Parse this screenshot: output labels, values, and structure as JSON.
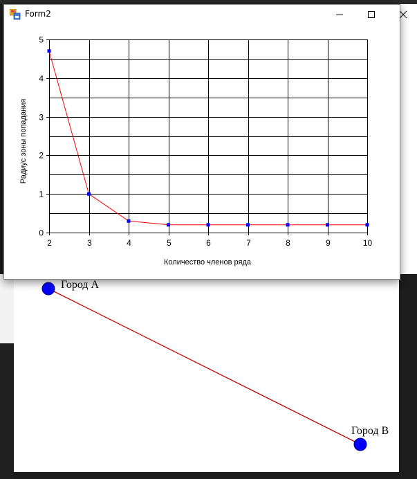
{
  "window": {
    "title": "Form2",
    "icon": "form-app-icon",
    "controls": [
      "minimize-icon",
      "maximize-icon",
      "close-icon"
    ]
  },
  "background_form": {
    "cities": [
      {
        "name": "Город A",
        "color": "#0000ff"
      },
      {
        "name": "Город B",
        "color": "#0000ff"
      }
    ],
    "line_color": "#c00000"
  },
  "chart_data": {
    "type": "line",
    "xlabel": "Количество членов ряда",
    "ylabel": "Радиус зоны попадания",
    "x": [
      2,
      3,
      4,
      5,
      6,
      7,
      8,
      9,
      10
    ],
    "series": [
      {
        "values": [
          4.7,
          1.0,
          0.3,
          0.2,
          0.2,
          0.2,
          0.2,
          0.2,
          0.2
        ],
        "line_color": "#ff0000",
        "marker_color": "#0000ff",
        "marker": "square"
      }
    ],
    "xlim": [
      2,
      10
    ],
    "ylim": [
      0,
      5
    ],
    "x_ticks": [
      "2",
      "3",
      "4",
      "5",
      "6",
      "7",
      "8",
      "9",
      "10"
    ],
    "y_ticks": [
      "0",
      "1",
      "2",
      "3",
      "4",
      "5"
    ],
    "y_minor_step": 0.5,
    "grid": true,
    "grid_color": "#000000"
  }
}
